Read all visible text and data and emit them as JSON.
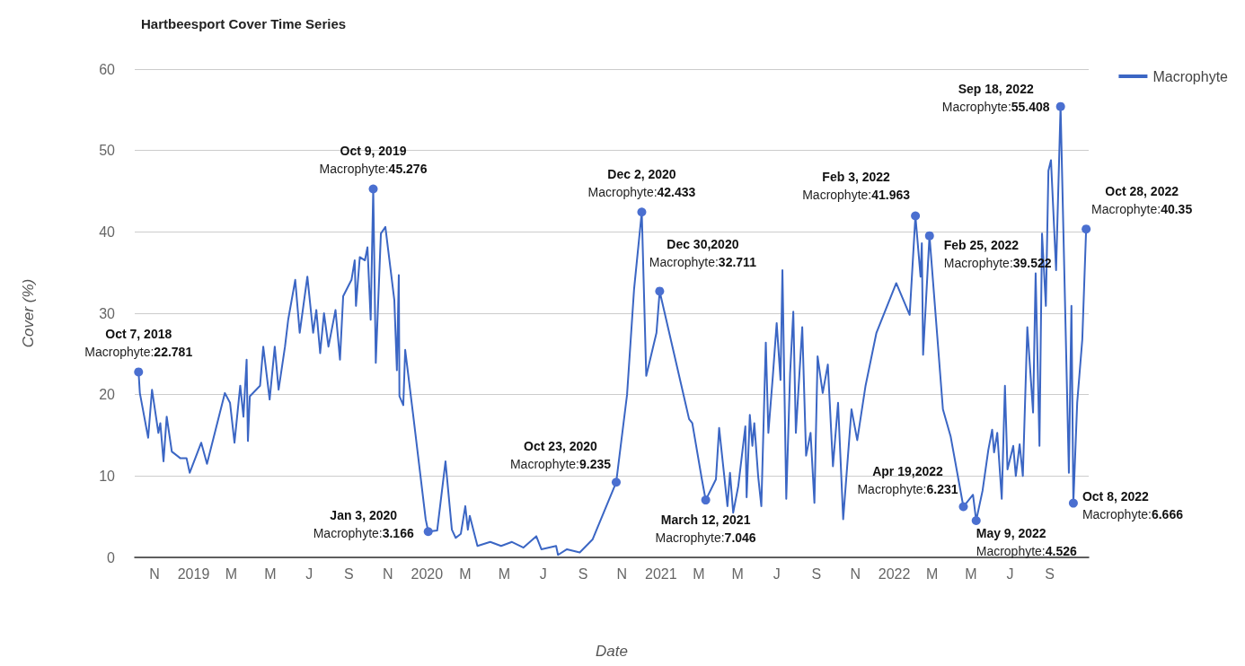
{
  "chart_data": {
    "type": "line",
    "title": "Hartbeesport Cover Time Series",
    "xlabel": "Date",
    "ylabel": "Cover (%)",
    "xlim": [
      "2018-10-01",
      "2022-11-01"
    ],
    "xticks": [
      {
        "value": "2018-11-01",
        "label": "N"
      },
      {
        "value": "2019-01-01",
        "label": "2019"
      },
      {
        "value": "2019-03-01",
        "label": "M"
      },
      {
        "value": "2019-05-01",
        "label": "M"
      },
      {
        "value": "2019-07-01",
        "label": "J"
      },
      {
        "value": "2019-09-01",
        "label": "S"
      },
      {
        "value": "2019-11-01",
        "label": "N"
      },
      {
        "value": "2020-01-01",
        "label": "2020"
      },
      {
        "value": "2020-03-01",
        "label": "M"
      },
      {
        "value": "2020-05-01",
        "label": "M"
      },
      {
        "value": "2020-07-01",
        "label": "J"
      },
      {
        "value": "2020-09-01",
        "label": "S"
      },
      {
        "value": "2020-11-01",
        "label": "N"
      },
      {
        "value": "2021-01-01",
        "label": "2021"
      },
      {
        "value": "2021-03-01",
        "label": "M"
      },
      {
        "value": "2021-05-01",
        "label": "M"
      },
      {
        "value": "2021-07-01",
        "label": "J"
      },
      {
        "value": "2021-09-01",
        "label": "S"
      },
      {
        "value": "2021-11-01",
        "label": "N"
      },
      {
        "value": "2022-01-01",
        "label": "2022"
      },
      {
        "value": "2022-03-01",
        "label": "M"
      },
      {
        "value": "2022-05-01",
        "label": "M"
      },
      {
        "value": "2022-07-01",
        "label": "J"
      },
      {
        "value": "2022-09-01",
        "label": "S"
      }
    ],
    "ylim": [
      0,
      60
    ],
    "yticks": [
      0,
      10,
      20,
      30,
      40,
      50,
      60
    ],
    "grid": "y",
    "legend": "top right",
    "marker": "none",
    "line_style": "solid",
    "x": [
      "2018-10-07",
      "2018-10-09",
      "2018-10-22",
      "2018-10-28",
      "2018-11-07",
      "2018-11-10",
      "2018-11-15",
      "2018-11-20",
      "2018-11-28",
      "2018-12-11",
      "2018-12-21",
      "2018-12-26",
      "2019-01-13",
      "2019-01-22",
      "2019-02-19",
      "2019-02-27",
      "2019-03-06",
      "2019-03-15",
      "2019-03-20",
      "2019-03-25",
      "2019-03-27",
      "2019-03-30",
      "2019-04-15",
      "2019-04-20",
      "2019-04-30",
      "2019-05-08",
      "2019-05-14",
      "2019-05-24",
      "2019-05-29",
      "2019-06-09",
      "2019-06-16",
      "2019-06-28",
      "2019-07-07",
      "2019-07-12",
      "2019-07-18",
      "2019-07-24",
      "2019-07-31",
      "2019-08-11",
      "2019-08-18",
      "2019-08-23",
      "2019-09-05",
      "2019-09-10",
      "2019-09-12",
      "2019-09-18",
      "2019-09-26",
      "2019-09-30",
      "2019-10-05",
      "2019-10-09",
      "2019-10-13",
      "2019-10-21",
      "2019-10-28",
      "2019-11-11",
      "2019-11-15",
      "2019-11-18",
      "2019-11-19",
      "2019-11-25",
      "2019-11-28",
      "2019-12-10",
      "2019-12-30",
      "2020-01-03",
      "2020-01-17",
      "2020-01-30",
      "2020-02-09",
      "2020-02-15",
      "2020-02-23",
      "2020-03-01",
      "2020-03-05",
      "2020-03-08",
      "2020-03-20",
      "2020-04-09",
      "2020-04-26",
      "2020-05-13",
      "2020-05-31",
      "2020-06-20",
      "2020-06-28",
      "2020-07-21",
      "2020-07-24",
      "2020-08-07",
      "2020-08-27",
      "2020-09-16",
      "2020-10-23",
      "2020-11-09",
      "2020-11-20",
      "2020-12-02",
      "2020-12-09",
      "2020-12-25",
      "2020-12-30",
      "2021-02-14",
      "2021-02-19",
      "2021-03-06",
      "2021-03-12",
      "2021-03-28",
      "2021-04-02",
      "2021-04-15",
      "2021-04-19",
      "2021-04-24",
      "2021-05-02",
      "2021-05-13",
      "2021-05-15",
      "2021-05-20",
      "2021-05-24",
      "2021-05-27",
      "2021-06-02",
      "2021-06-07",
      "2021-06-14",
      "2021-06-18",
      "2021-06-25",
      "2021-07-01",
      "2021-07-07",
      "2021-07-10",
      "2021-07-16",
      "2021-07-22",
      "2021-07-27",
      "2021-07-31",
      "2021-08-10",
      "2021-08-16",
      "2021-08-23",
      "2021-08-29",
      "2021-09-03",
      "2021-09-11",
      "2021-09-19",
      "2021-09-27",
      "2021-10-05",
      "2021-10-13",
      "2021-10-26",
      "2021-11-04",
      "2021-11-17",
      "2021-12-04",
      "2022-01-04",
      "2022-01-25",
      "2022-02-03",
      "2022-02-11",
      "2022-02-13",
      "2022-02-15",
      "2022-02-25",
      "2022-03-18",
      "2022-03-30",
      "2022-04-19",
      "2022-05-04",
      "2022-05-09",
      "2022-05-19",
      "2022-05-28",
      "2022-06-03",
      "2022-06-06",
      "2022-06-11",
      "2022-06-18",
      "2022-06-23",
      "2022-06-27",
      "2022-07-06",
      "2022-07-10",
      "2022-07-16",
      "2022-07-21",
      "2022-07-28",
      "2022-08-06",
      "2022-08-10",
      "2022-08-16",
      "2022-08-20",
      "2022-08-26",
      "2022-08-30",
      "2022-09-03",
      "2022-09-11",
      "2022-09-18",
      "2022-10-01",
      "2022-10-05",
      "2022-10-08",
      "2022-10-14",
      "2022-10-22",
      "2022-10-28"
    ],
    "series": [
      {
        "name": "Macrophyte",
        "color": "#3b66c4",
        "values": [
          22.781,
          20.2,
          14.7,
          20.6,
          15.3,
          16.5,
          11.8,
          17.3,
          13.0,
          12.2,
          12.2,
          10.4,
          14.1,
          11.5,
          20.2,
          19.0,
          14.1,
          21.1,
          17.3,
          24.3,
          14.3,
          19.8,
          21.1,
          25.9,
          19.4,
          25.9,
          20.6,
          25.9,
          29.2,
          34.1,
          27.6,
          34.5,
          27.6,
          30.4,
          25.1,
          30.0,
          25.9,
          30.4,
          24.3,
          32.1,
          34.1,
          36.5,
          30.9,
          36.9,
          36.5,
          38.1,
          29.2,
          45.276,
          23.9,
          39.8,
          40.6,
          31.6,
          23.0,
          34.7,
          19.8,
          18.7,
          25.5,
          17.8,
          4.7,
          3.166,
          3.3,
          11.8,
          3.4,
          2.4,
          2.9,
          6.3,
          3.4,
          5.1,
          1.4,
          1.9,
          1.4,
          1.9,
          1.2,
          2.6,
          1.0,
          1.4,
          0.3,
          1.0,
          0.6,
          2.2,
          9.235,
          20.0,
          33.0,
          42.433,
          22.3,
          27.6,
          32.711,
          17.0,
          16.5,
          9.6,
          7.046,
          9.6,
          15.9,
          6.3,
          10.4,
          5.5,
          8.8,
          16.1,
          7.4,
          17.5,
          13.7,
          16.5,
          10.0,
          6.3,
          26.4,
          15.3,
          22.3,
          28.8,
          21.8,
          35.3,
          7.2,
          22.6,
          30.2,
          15.3,
          28.3,
          12.5,
          15.3,
          6.7,
          24.7,
          20.2,
          23.7,
          11.2,
          19.0,
          4.7,
          18.2,
          14.4,
          21.1,
          27.6,
          33.7,
          29.8,
          41.963,
          34.5,
          38.6,
          24.9,
          39.522,
          18.2,
          14.9,
          6.231,
          7.7,
          4.526,
          8.2,
          13.2,
          15.7,
          12.9,
          15.3,
          7.2,
          21.1,
          10.8,
          13.7,
          10.0,
          13.9,
          10.0,
          28.3,
          17.8,
          34.9,
          13.7,
          39.8,
          30.9,
          47.5,
          48.8,
          35.3,
          55.408,
          10.4,
          30.9,
          6.666,
          19.0,
          26.8,
          40.35
        ]
      }
    ],
    "annotations": [
      {
        "text": "Oct 7, 2018\nMacrophyte:22.781",
        "x": "2018-10-07",
        "y": 22.781
      },
      {
        "text": "Oct 9, 2019\nMacrophyte:45.276",
        "x": "2019-10-09",
        "y": 45.276
      },
      {
        "text": "Jan 3, 2020\nMacrophyte:3.166",
        "x": "2020-01-03",
        "y": 3.166
      },
      {
        "text": "Oct 23, 2020\nMacrophyte:9.235",
        "x": "2020-10-23",
        "y": 9.235
      },
      {
        "text": "Dec 2, 2020\nMacrophyte:42.433",
        "x": "2020-12-02",
        "y": 42.433
      },
      {
        "text": "Dec 30,2020\nMacrophyte:32.711",
        "x": "2020-12-30",
        "y": 32.711
      },
      {
        "text": "March 12, 2021\nMacrophyte:7.046",
        "x": "2021-03-12",
        "y": 7.046
      },
      {
        "text": "Feb 3, 2022\nMacrophyte:41.963",
        "x": "2022-02-03",
        "y": 41.963
      },
      {
        "text": "Feb 25, 2022\nMacrophyte:39.522",
        "x": "2022-02-25",
        "y": 39.522
      },
      {
        "text": "Apr 19,2022\nMacrophyte:6.231",
        "x": "2022-04-19",
        "y": 6.231
      },
      {
        "text": "May 9, 2022\nMacrophyte:4.526",
        "x": "2022-05-09",
        "y": 4.526
      },
      {
        "text": "Sep 18, 2022\nMacrophyte:55.408",
        "x": "2022-09-18",
        "y": 55.408
      },
      {
        "text": "Oct 8, 2022\nMacrophyte:6.666",
        "x": "2022-10-08",
        "y": 6.666
      },
      {
        "text": "Oct 28, 2022\nMacrophyte:40.35",
        "x": "2022-10-28",
        "y": 40.35
      }
    ]
  }
}
